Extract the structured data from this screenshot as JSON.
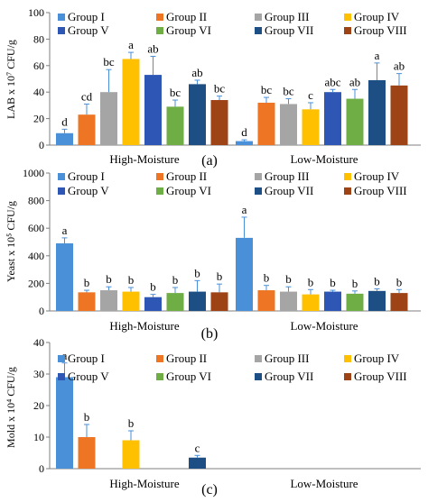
{
  "colors": {
    "Group I": "#4a90d9",
    "Group II": "#ed7523",
    "Group III": "#a5a5a5",
    "Group IV": "#ffc000",
    "Group V": "#2e56b4",
    "Group VI": "#6fad45",
    "Group VII": "#1d4f84",
    "Group VIII": "#9e4316",
    "axis": "#7f7f7f",
    "errorbar": "#4a90d9"
  },
  "legend_order": [
    "Group I",
    "Group II",
    "Group III",
    "Group IV",
    "Group V",
    "Group VI",
    "Group VII",
    "Group VIII"
  ],
  "chart_data": [
    {
      "type": "bar",
      "panel_label": "(a)",
      "ylabel": "LAB x 10⁷ CFU/g",
      "ylim": [
        0,
        100
      ],
      "yticks": [
        0,
        20,
        40,
        60,
        80,
        100
      ],
      "categories": [
        "High-Moisture",
        "Low-Moisture"
      ],
      "legend": "top",
      "series": [
        {
          "name": "Group I",
          "values": [
            9,
            3
          ],
          "errors": [
            3,
            1
          ],
          "letters": [
            "d",
            "d"
          ]
        },
        {
          "name": "Group II",
          "values": [
            23,
            32
          ],
          "errors": [
            8,
            4
          ],
          "letters": [
            "cd",
            "bc"
          ]
        },
        {
          "name": "Group III",
          "values": [
            40,
            31
          ],
          "errors": [
            17,
            4
          ],
          "letters": [
            "bc",
            "bc"
          ]
        },
        {
          "name": "Group IV",
          "values": [
            65,
            27
          ],
          "errors": [
            5,
            5
          ],
          "letters": [
            "a",
            "c"
          ]
        },
        {
          "name": "Group V",
          "values": [
            53,
            40
          ],
          "errors": [
            14,
            2
          ],
          "letters": [
            "ab",
            "abc"
          ]
        },
        {
          "name": "Group VI",
          "values": [
            29,
            35
          ],
          "errors": [
            5,
            7
          ],
          "letters": [
            "bc",
            "ab"
          ]
        },
        {
          "name": "Group VII",
          "values": [
            46,
            49
          ],
          "errors": [
            3,
            13
          ],
          "letters": [
            "ab",
            "a"
          ]
        },
        {
          "name": "Group VIII",
          "values": [
            34,
            45
          ],
          "errors": [
            3,
            9
          ],
          "letters": [
            "bc",
            "ab"
          ]
        }
      ]
    },
    {
      "type": "bar",
      "panel_label": "(b)",
      "ylabel": "Yeast x 10⁵ CFU/g",
      "ylim": [
        0,
        1000
      ],
      "yticks": [
        0,
        200,
        400,
        600,
        800,
        1000
      ],
      "categories": [
        "High-Moisture",
        "Low-Moisture"
      ],
      "legend": "top",
      "series": [
        {
          "name": "Group I",
          "values": [
            490,
            530
          ],
          "errors": [
            40,
            150
          ],
          "letters": [
            "a",
            "a"
          ]
        },
        {
          "name": "Group II",
          "values": [
            135,
            150
          ],
          "errors": [
            15,
            35
          ],
          "letters": [
            "b",
            "b"
          ]
        },
        {
          "name": "Group III",
          "values": [
            150,
            140
          ],
          "errors": [
            25,
            35
          ],
          "letters": [
            "b",
            "b"
          ]
        },
        {
          "name": "Group IV",
          "values": [
            140,
            120
          ],
          "errors": [
            30,
            35
          ],
          "letters": [
            "b",
            "b"
          ]
        },
        {
          "name": "Group V",
          "values": [
            100,
            140
          ],
          "errors": [
            20,
            10
          ],
          "letters": [
            "b",
            "b"
          ]
        },
        {
          "name": "Group VI",
          "values": [
            130,
            125
          ],
          "errors": [
            40,
            20
          ],
          "letters": [
            "b",
            "b"
          ]
        },
        {
          "name": "Group VII",
          "values": [
            140,
            145
          ],
          "errors": [
            80,
            15
          ],
          "letters": [
            "b",
            "b"
          ]
        },
        {
          "name": "Group VIII",
          "values": [
            135,
            130
          ],
          "errors": [
            60,
            25
          ],
          "letters": [
            "b",
            "b"
          ]
        }
      ]
    },
    {
      "type": "bar",
      "panel_label": "(c)",
      "ylabel": "Mold x 10⁴ CFU/g",
      "ylim": [
        0,
        40
      ],
      "yticks": [
        0,
        10,
        20,
        30,
        40
      ],
      "categories": [
        "High-Moisture",
        "Low-Moisture"
      ],
      "legend": "top",
      "series": [
        {
          "name": "Group I",
          "values": [
            29,
            0
          ],
          "errors": [
            4.5,
            0
          ],
          "letters": [
            "a",
            ""
          ]
        },
        {
          "name": "Group II",
          "values": [
            10,
            0
          ],
          "errors": [
            4,
            0
          ],
          "letters": [
            "b",
            ""
          ]
        },
        {
          "name": "Group III",
          "values": [
            0,
            0
          ],
          "errors": [
            0,
            0
          ],
          "letters": [
            "",
            ""
          ]
        },
        {
          "name": "Group IV",
          "values": [
            9,
            0
          ],
          "errors": [
            3,
            0
          ],
          "letters": [
            "b",
            ""
          ]
        },
        {
          "name": "Group V",
          "values": [
            0,
            0
          ],
          "errors": [
            0,
            0
          ],
          "letters": [
            "",
            ""
          ]
        },
        {
          "name": "Group VI",
          "values": [
            0,
            0
          ],
          "errors": [
            0,
            0
          ],
          "letters": [
            "",
            ""
          ]
        },
        {
          "name": "Group VII",
          "values": [
            3.5,
            0
          ],
          "errors": [
            0.7,
            0
          ],
          "letters": [
            "c",
            ""
          ]
        },
        {
          "name": "Group VIII",
          "values": [
            0,
            0
          ],
          "errors": [
            0,
            0
          ],
          "letters": [
            "",
            ""
          ]
        }
      ]
    }
  ]
}
